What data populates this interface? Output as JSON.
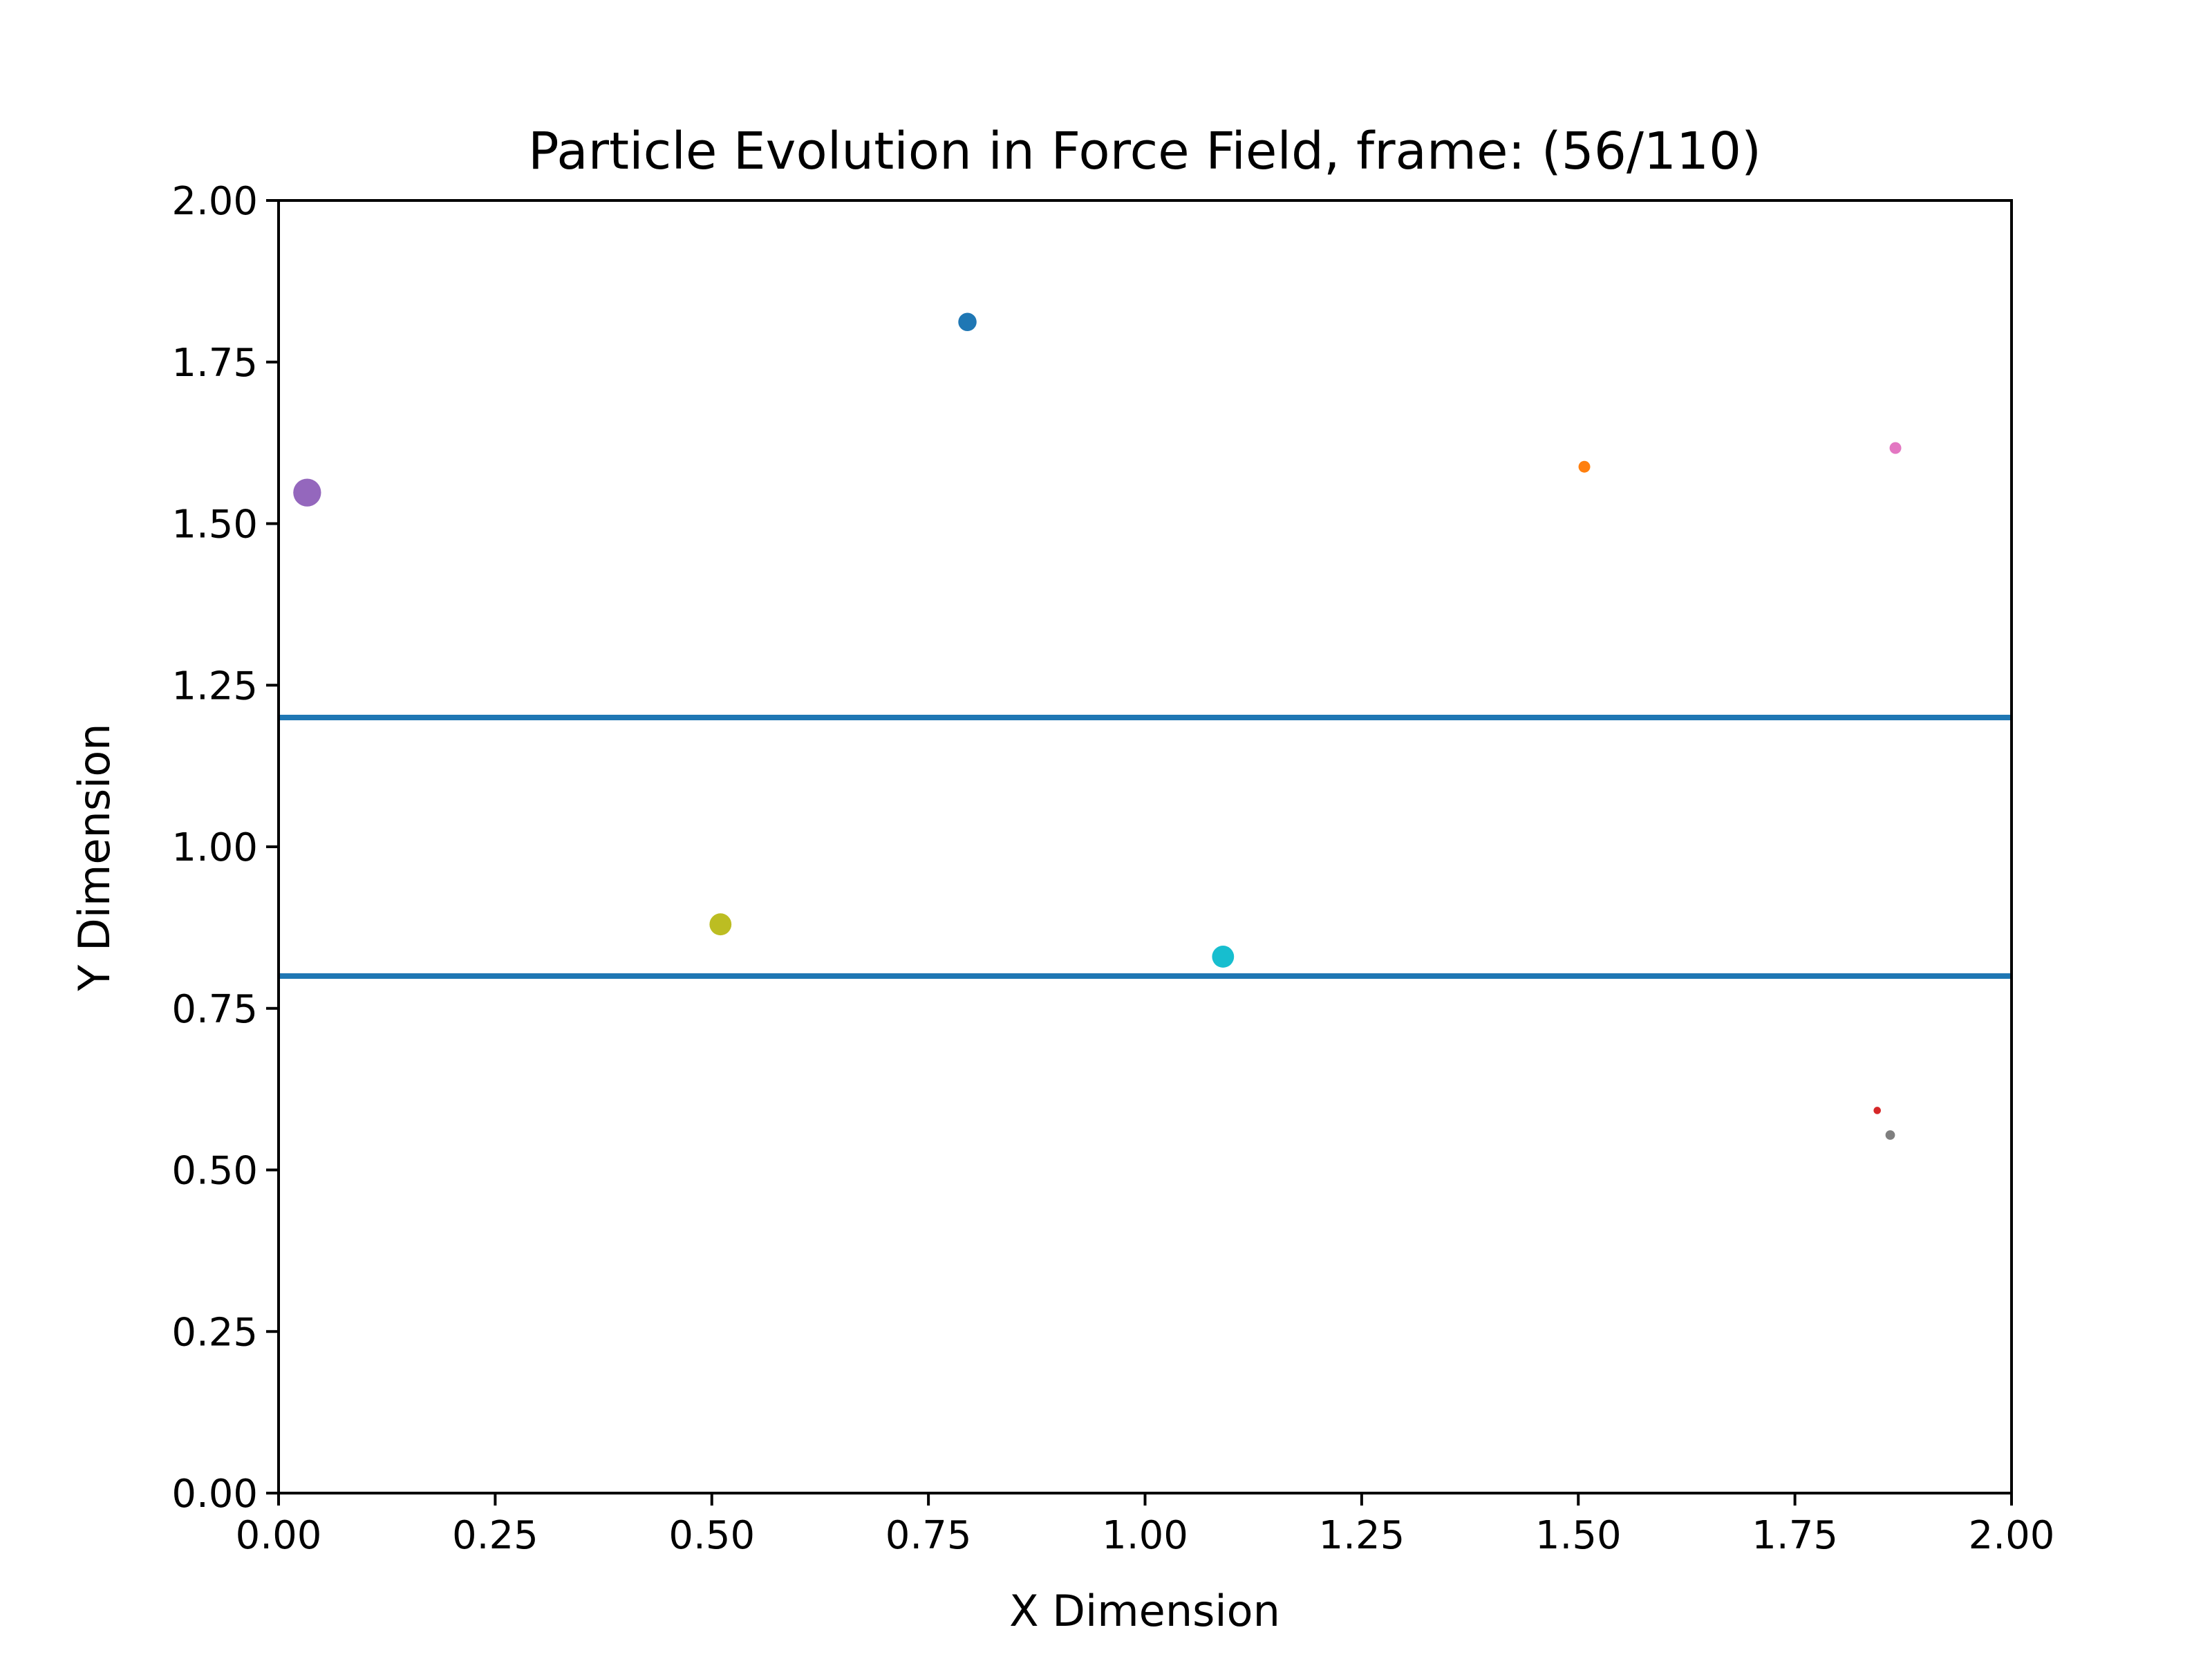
{
  "chart_data": {
    "type": "scatter",
    "title": "Particle Evolution in Force Field, frame: (56/110)",
    "xlabel": "X Dimension",
    "ylabel": "Y Dimension",
    "xlim": [
      0,
      2
    ],
    "ylim": [
      0,
      2
    ],
    "xticks": [
      "0.00",
      "0.25",
      "0.50",
      "0.75",
      "1.00",
      "1.25",
      "1.50",
      "1.75",
      "2.00"
    ],
    "yticks": [
      "0.00",
      "0.25",
      "0.50",
      "0.75",
      "1.00",
      "1.25",
      "1.50",
      "1.75",
      "2.00"
    ],
    "grid": false,
    "legend": "none",
    "hlines": [
      {
        "y": 1.2,
        "color": "#1f77b4"
      },
      {
        "y": 0.8,
        "color": "#1f77b4"
      }
    ],
    "points": [
      {
        "x": 0.795,
        "y": 1.812,
        "color": "#1f77b4",
        "size": 2.5
      },
      {
        "x": 1.507,
        "y": 1.588,
        "color": "#ff7f0e",
        "size": 1.6
      },
      {
        "x": 1.845,
        "y": 0.592,
        "color": "#d62728",
        "size": 1.0
      },
      {
        "x": 0.033,
        "y": 1.548,
        "color": "#9467bd",
        "size": 3.8
      },
      {
        "x": 1.866,
        "y": 1.617,
        "color": "#e377c2",
        "size": 1.6
      },
      {
        "x": 1.86,
        "y": 0.554,
        "color": "#7f7f7f",
        "size": 1.3
      },
      {
        "x": 0.51,
        "y": 0.88,
        "color": "#bcbd22",
        "size": 3.0
      },
      {
        "x": 1.09,
        "y": 0.83,
        "color": "#17becf",
        "size": 3.0
      }
    ]
  }
}
